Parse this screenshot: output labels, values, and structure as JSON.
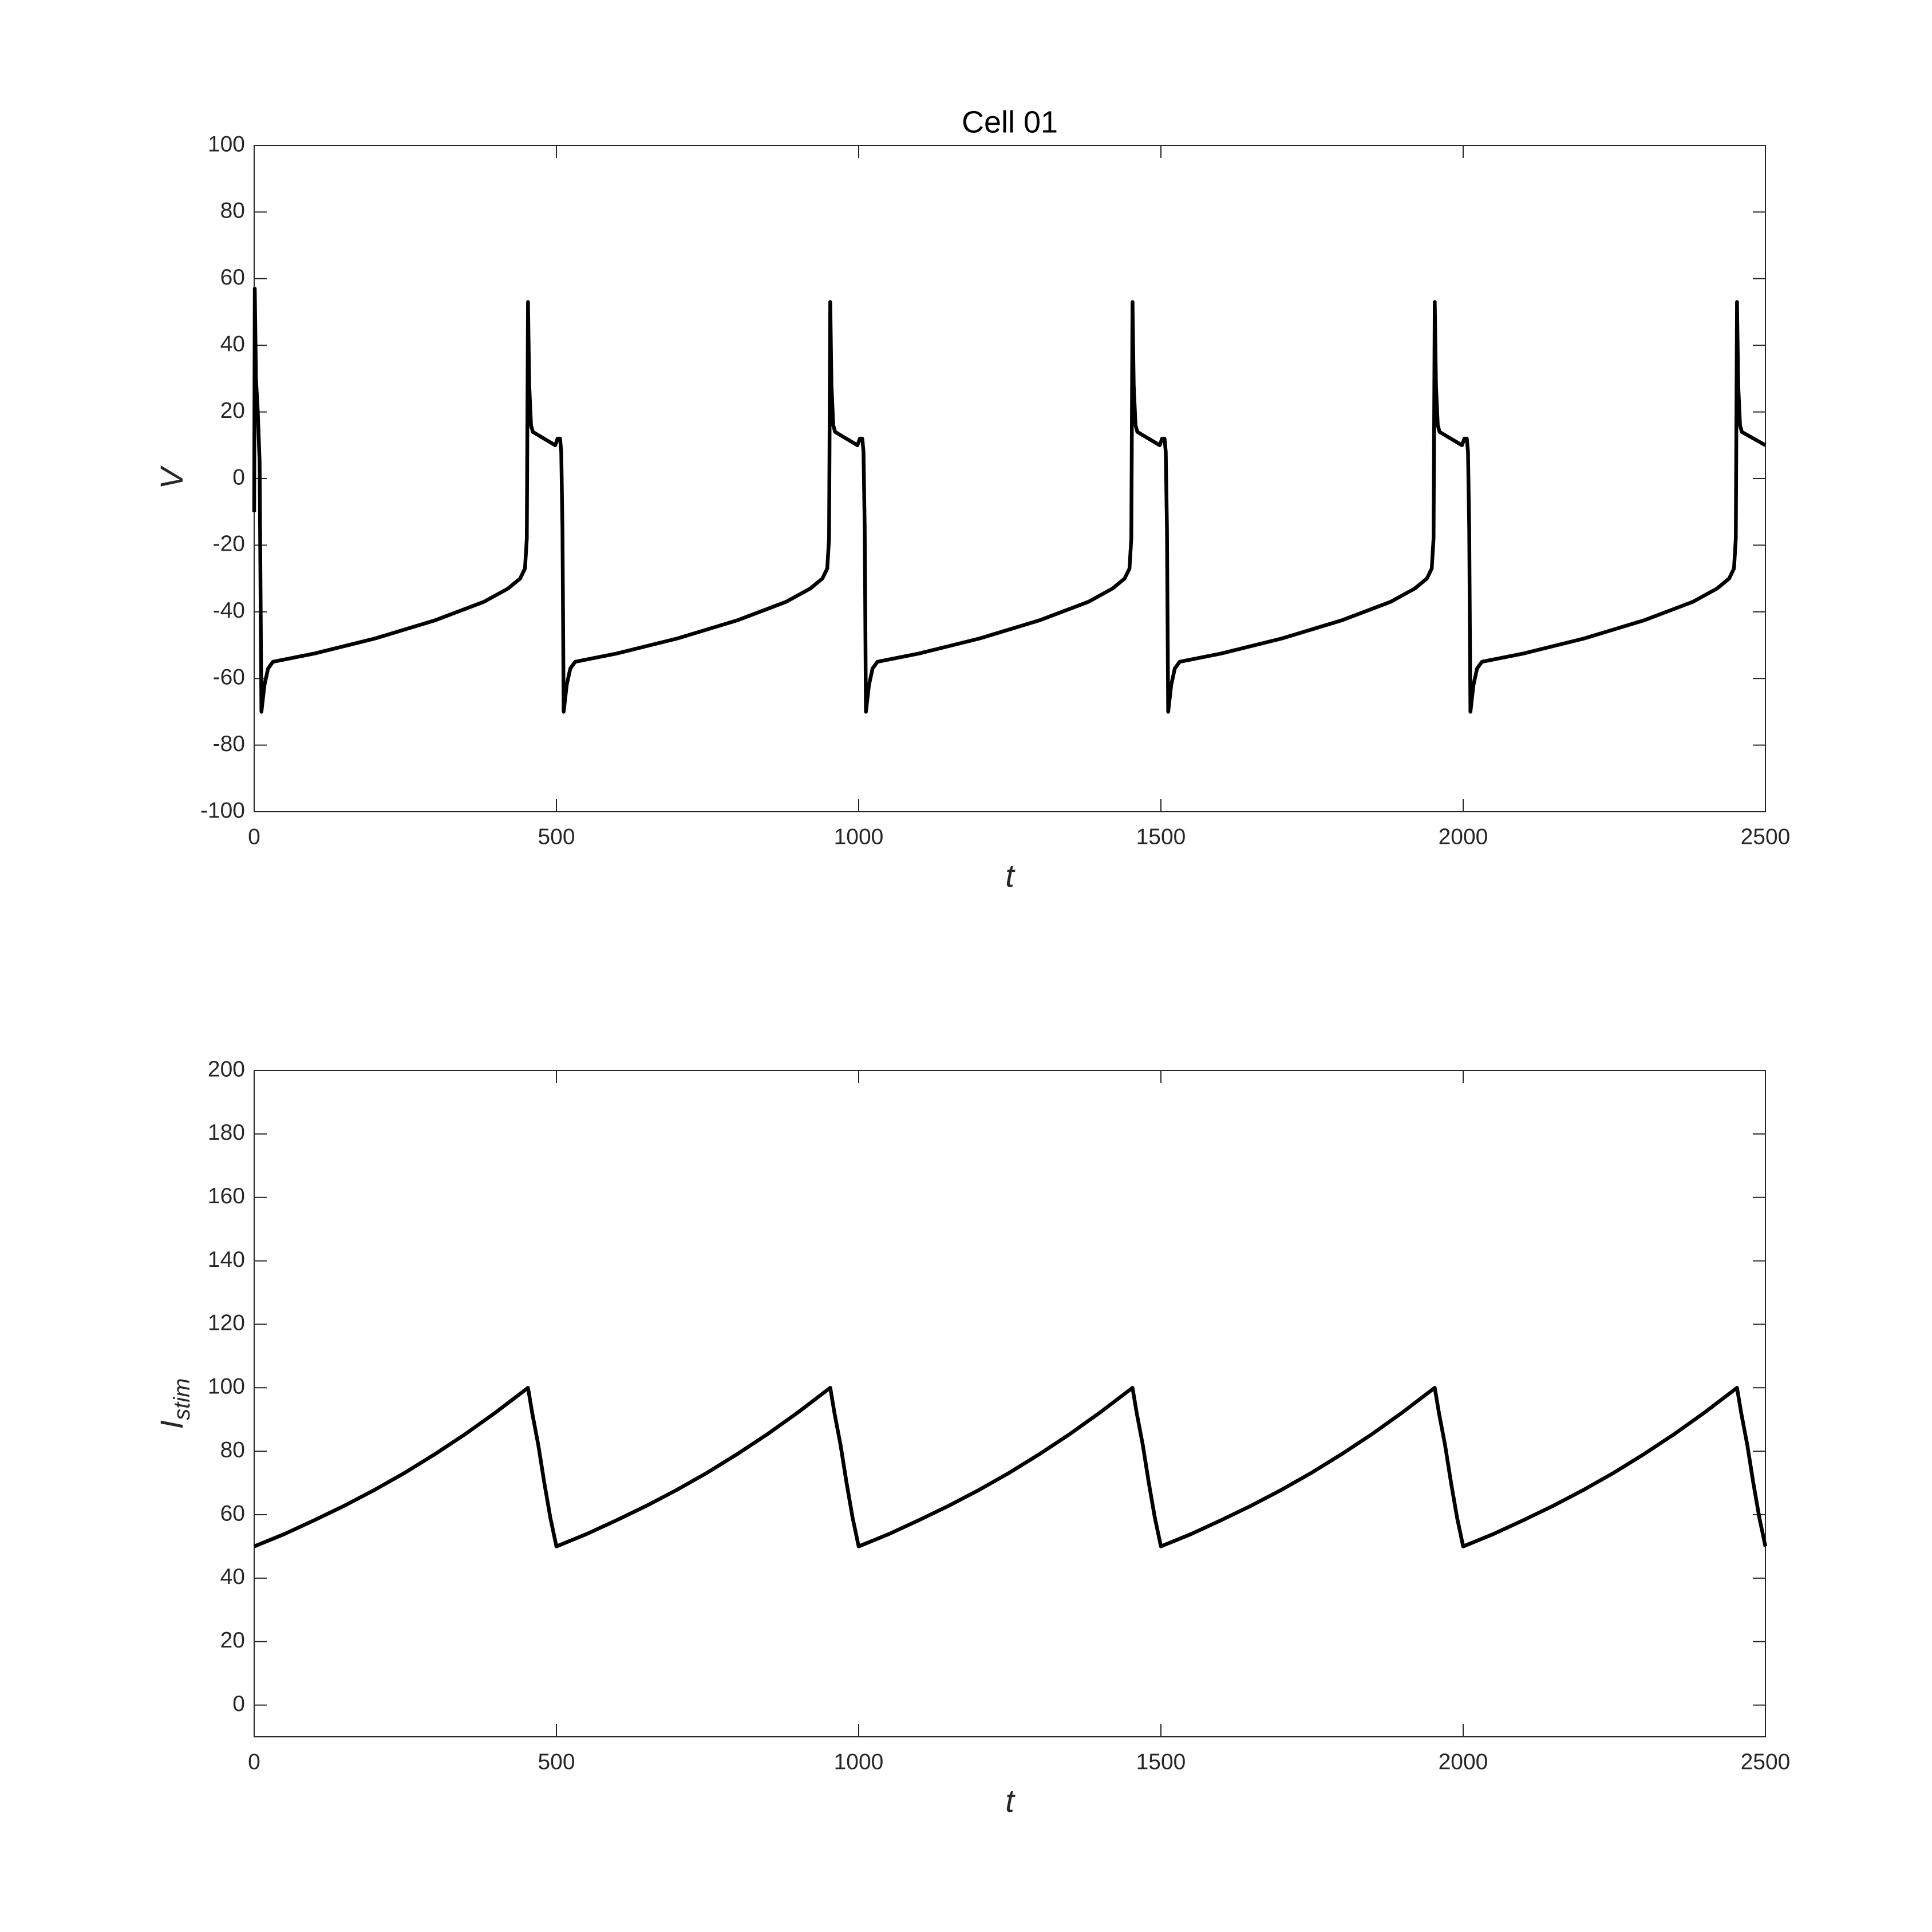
{
  "chart_data": [
    {
      "type": "line",
      "title": "Cell 01",
      "xlabel": "t",
      "ylabel": "V",
      "xlim": [
        0,
        2500
      ],
      "ylim": [
        -100,
        100
      ],
      "xticks": [
        0,
        500,
        1000,
        1500,
        2000,
        2500
      ],
      "yticks": [
        -100,
        -80,
        -60,
        -40,
        -20,
        0,
        20,
        40,
        60,
        80,
        100
      ],
      "grid": false,
      "color": "#000000",
      "x": [
        0,
        1,
        3,
        6,
        9,
        10,
        12,
        17,
        23,
        31,
        100,
        200,
        300,
        380,
        420,
        440,
        448,
        451,
        453,
        455,
        458,
        461,
        498,
        502,
        506,
        508,
        510,
        512,
        517,
        523,
        531,
        600,
        700,
        800,
        880,
        920,
        940,
        948,
        951,
        953,
        955,
        958,
        961,
        998,
        1002,
        1006,
        1008,
        1010,
        1012,
        1017,
        1023,
        1031,
        1100,
        1200,
        1300,
        1380,
        1420,
        1440,
        1448,
        1451,
        1453,
        1455,
        1458,
        1461,
        1498,
        1502,
        1506,
        1508,
        1510,
        1512,
        1517,
        1523,
        1531,
        1600,
        1700,
        1800,
        1880,
        1920,
        1940,
        1948,
        1951,
        1953,
        1955,
        1958,
        1961,
        1998,
        2002,
        2006,
        2008,
        2010,
        2012,
        2017,
        2023,
        2031,
        2100,
        2200,
        2300,
        2380,
        2420,
        2440,
        2448,
        2451,
        2453,
        2455,
        2458,
        2461,
        2500
      ],
      "values": [
        -10,
        57,
        30,
        20,
        5,
        -20,
        -70,
        -62,
        -57,
        -55,
        -52.5,
        -48,
        -42.5,
        -37,
        -33,
        -30,
        -27,
        -18,
        53,
        28,
        16,
        14,
        10,
        12,
        12,
        8,
        -15,
        -70,
        -62,
        -57,
        -55,
        -52.5,
        -48,
        -42.5,
        -37,
        -33,
        -30,
        -27,
        -18,
        53,
        28,
        16,
        14,
        10,
        12,
        12,
        8,
        -15,
        -70,
        -62,
        -57,
        -55,
        -52.5,
        -48,
        -42.5,
        -37,
        -33,
        -30,
        -27,
        -18,
        53,
        28,
        16,
        14,
        10,
        12,
        12,
        8,
        -15,
        -70,
        -62,
        -57,
        -55,
        -52.5,
        -48,
        -42.5,
        -37,
        -33,
        -30,
        -27,
        -18,
        53,
        28,
        16,
        14,
        10,
        12,
        12,
        8,
        -15,
        -70,
        -62,
        -57,
        -55,
        -52.5,
        -48,
        -42.5,
        -37,
        -33,
        -30,
        -27,
        -18,
        53,
        28,
        16,
        14,
        10
      ]
    },
    {
      "type": "line",
      "xlabel": "t",
      "ylabel": "I",
      "ylabel_subscript": "stim",
      "xlim": [
        0,
        2500
      ],
      "ylim": [
        -10,
        200
      ],
      "xticks": [
        0,
        500,
        1000,
        1500,
        2000,
        2500
      ],
      "yticks": [
        0,
        20,
        40,
        60,
        80,
        100,
        120,
        140,
        160,
        180,
        200
      ],
      "grid": false,
      "color": "#000000",
      "x": [
        0,
        50,
        100,
        150,
        200,
        250,
        300,
        350,
        400,
        453,
        460,
        470,
        480,
        490,
        500,
        550,
        600,
        650,
        700,
        750,
        800,
        850,
        900,
        953,
        960,
        970,
        980,
        990,
        1000,
        1050,
        1100,
        1150,
        1200,
        1250,
        1300,
        1350,
        1400,
        1453,
        1460,
        1470,
        1480,
        1490,
        1500,
        1550,
        1600,
        1650,
        1700,
        1750,
        1800,
        1850,
        1900,
        1953,
        1960,
        1970,
        1980,
        1990,
        2000,
        2050,
        2100,
        2150,
        2200,
        2250,
        2300,
        2350,
        2400,
        2453,
        2460,
        2470,
        2480,
        2490,
        2500
      ],
      "values": [
        50,
        53.9,
        58.3,
        62.9,
        67.9,
        73.3,
        79.2,
        85.5,
        92.3,
        100,
        92,
        82,
        70,
        59,
        50,
        53.9,
        58.3,
        62.9,
        67.9,
        73.3,
        79.2,
        85.5,
        92.3,
        100,
        92,
        82,
        70,
        59,
        50,
        53.9,
        58.3,
        62.9,
        67.9,
        73.3,
        79.2,
        85.5,
        92.3,
        100,
        92,
        82,
        70,
        59,
        50,
        53.9,
        58.3,
        62.9,
        67.9,
        73.3,
        79.2,
        85.5,
        92.3,
        100,
        92,
        82,
        70,
        59,
        50,
        53.9,
        58.3,
        62.9,
        67.9,
        73.3,
        79.2,
        85.5,
        92.3,
        100,
        92,
        82,
        70,
        59,
        50
      ]
    }
  ]
}
